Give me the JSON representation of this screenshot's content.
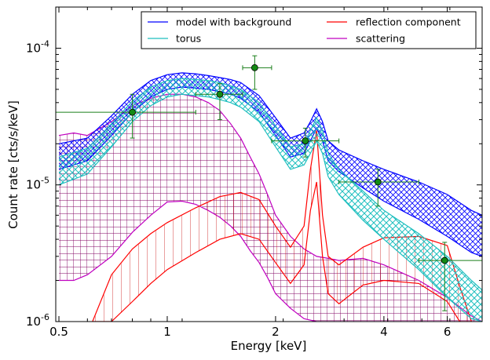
{
  "chart_data": {
    "type": "line",
    "title": "",
    "xlabel": "Energy [keV]",
    "ylabel": "Count rate [cts/s/keV]",
    "x_scale": "log",
    "y_scale": "log",
    "xlim": [
      0.49,
      7.5
    ],
    "ylim": [
      1e-06,
      0.0002
    ],
    "grid": false,
    "legend_placement": "top-right",
    "x_ticks": [
      {
        "value": 0.5,
        "label": "0.5"
      },
      {
        "value": 1,
        "label": "1"
      },
      {
        "value": 2,
        "label": "2"
      },
      {
        "value": 4,
        "label": "4"
      },
      {
        "value": 6,
        "label": "6"
      }
    ],
    "y_ticks": [
      {
        "value": 1e-06,
        "base": "10",
        "exp": "-6"
      },
      {
        "value": 1e-05,
        "base": "10",
        "exp": "-5"
      },
      {
        "value": 0.0001,
        "base": "10",
        "exp": "-4"
      }
    ],
    "legend": [
      {
        "label": "model with background",
        "color": "#0000ff"
      },
      {
        "label": "reflection component",
        "color": "#ff0000"
      },
      {
        "label": "torus",
        "color": "#1fbfbf"
      },
      {
        "label": "scattering",
        "color": "#c000c0"
      }
    ],
    "colors": {
      "model": "#0000ff",
      "torus": "#1fbfbf",
      "reflection": "#ff0000",
      "scattering": "#c000c0",
      "data": "#1a7f1a",
      "data_marker": "#138a13"
    },
    "series": [
      {
        "name": "model with background",
        "band": "crosshatch",
        "x": [
          0.5,
          0.6,
          0.7,
          0.8,
          0.9,
          1.0,
          1.1,
          1.2,
          1.3,
          1.4,
          1.5,
          1.6,
          1.8,
          2.0,
          2.2,
          2.4,
          2.5,
          2.6,
          2.7,
          2.8,
          3.0,
          3.5,
          4.0,
          5.0,
          6.0,
          7.0,
          7.5
        ],
        "upper": [
          2e-05,
          2.2e-05,
          3.2e-05,
          4.6e-05,
          5.8e-05,
          6.4e-05,
          6.6e-05,
          6.5e-05,
          6.3e-05,
          6.1e-05,
          5.9e-05,
          5.6e-05,
          4.5e-05,
          3.1e-05,
          2.2e-05,
          2.4e-05,
          2.9e-05,
          3.6e-05,
          2.9e-05,
          2.1e-05,
          1.8e-05,
          1.5e-05,
          1.3e-05,
          1.05e-05,
          8.5e-06,
          6.5e-06,
          6e-06
        ],
        "lower": [
          1.3e-05,
          1.5e-05,
          2.3e-05,
          3.4e-05,
          4.4e-05,
          5e-05,
          5.2e-05,
          5.1e-05,
          5e-05,
          4.8e-05,
          4.6e-05,
          4.3e-05,
          3.4e-05,
          2.3e-05,
          1.6e-05,
          1.7e-05,
          2.1e-05,
          2.6e-05,
          2.1e-05,
          1.5e-05,
          1.25e-05,
          9.5e-06,
          7.6e-06,
          5.6e-06,
          4.2e-06,
          3.2e-06,
          3e-06
        ]
      },
      {
        "name": "torus",
        "band": "crosshatch",
        "x": [
          0.5,
          0.6,
          0.7,
          0.8,
          0.9,
          1.0,
          1.1,
          1.2,
          1.3,
          1.4,
          1.5,
          1.6,
          1.8,
          2.0,
          2.2,
          2.4,
          2.5,
          2.6,
          2.7,
          2.8,
          3.0,
          3.5,
          4.0,
          5.0,
          6.0,
          7.0,
          7.5
        ],
        "upper": [
          1.6e-05,
          1.85e-05,
          2.8e-05,
          4.1e-05,
          5.2e-05,
          5.8e-05,
          6e-05,
          5.9e-05,
          5.8e-05,
          5.6e-05,
          5.3e-05,
          5e-05,
          4e-05,
          2.7e-05,
          1.9e-05,
          2e-05,
          2.5e-05,
          3.1e-05,
          2.5e-05,
          1.7e-05,
          1.3e-05,
          9e-06,
          6.5e-06,
          4.4e-06,
          3e-06,
          2e-06,
          1.7e-06
        ],
        "lower": [
          1e-05,
          1.2e-05,
          1.9e-05,
          2.9e-05,
          3.8e-05,
          4.4e-05,
          4.6e-05,
          4.5e-05,
          4.4e-05,
          4.2e-05,
          4e-05,
          3.7e-05,
          2.9e-05,
          1.9e-05,
          1.3e-05,
          1.4e-05,
          1.7e-05,
          2.1e-05,
          1.7e-05,
          1.15e-05,
          8.5e-06,
          5.5e-06,
          4e-06,
          2.4e-06,
          1.5e-06,
          1.05e-06,
          1e-06
        ]
      },
      {
        "name": "reflection component",
        "band": "grid",
        "x": [
          0.62,
          0.7,
          0.8,
          0.9,
          1.0,
          1.2,
          1.4,
          1.6,
          1.8,
          2.0,
          2.2,
          2.4,
          2.5,
          2.6,
          2.7,
          2.8,
          3.0,
          3.5,
          4.0,
          5.0,
          6.0,
          6.5,
          7.0
        ],
        "upper": [
          1e-06,
          2.2e-06,
          3.4e-06,
          4.4e-06,
          5.3e-06,
          6.8e-06,
          8.2e-06,
          8.8e-06,
          7.8e-06,
          5e-06,
          3.5e-06,
          5e-06,
          1.3e-05,
          2.5e-05,
          6e-06,
          3e-06,
          2.6e-06,
          3.5e-06,
          4.1e-06,
          4.2e-06,
          3.6e-06,
          1.8e-06,
          1e-06
        ],
        "lower": [
          1e-06,
          1e-06,
          1.4e-06,
          1.9e-06,
          2.4e-06,
          3.2e-06,
          4e-06,
          4.4e-06,
          4e-06,
          2.7e-06,
          1.9e-06,
          2.6e-06,
          6.5e-06,
          1.05e-05,
          3e-06,
          1.6e-06,
          1.35e-06,
          1.85e-06,
          2e-06,
          1.9e-06,
          1.4e-06,
          1e-06,
          1e-06
        ]
      },
      {
        "name": "scattering",
        "band": "grid",
        "x": [
          0.5,
          0.55,
          0.6,
          0.7,
          0.8,
          0.9,
          1.0,
          1.1,
          1.2,
          1.3,
          1.4,
          1.5,
          1.6,
          1.7,
          1.8,
          1.9,
          2.0,
          2.2,
          2.4,
          2.6,
          2.8,
          3.0,
          3.5,
          4.0,
          5.0,
          6.0,
          7.0,
          7.5
        ],
        "upper": [
          2.3e-05,
          2.4e-05,
          2.3e-05,
          2.9e-05,
          3.8e-05,
          4.3e-05,
          4.6e-05,
          4.6e-05,
          4.4e-05,
          4e-05,
          3.5e-05,
          2.8e-05,
          2.2e-05,
          1.6e-05,
          1.2e-05,
          8.5e-06,
          6e-06,
          4.2e-06,
          3.4e-06,
          3e-06,
          2.9e-06,
          2.8e-06,
          2.9e-06,
          2.6e-06,
          2e-06,
          1.5e-06,
          1.1e-06,
          1e-06
        ],
        "lower": [
          2e-06,
          2e-06,
          2.2e-06,
          3e-06,
          4.5e-06,
          6e-06,
          7.5e-06,
          7.6e-06,
          7.2e-06,
          6.5e-06,
          5.8e-06,
          5e-06,
          4.2e-06,
          3.3e-06,
          2.7e-06,
          2.1e-06,
          1.6e-06,
          1.25e-06,
          1.05e-06,
          1e-06,
          1e-06,
          1e-06,
          1e-06,
          1e-06,
          1e-06,
          1e-06,
          1e-06,
          1e-06
        ]
      }
    ],
    "data_points": [
      {
        "x": 0.8,
        "xlo": 0.49,
        "xhi": 1.2,
        "y": 3.4e-05,
        "ylo": 2.2e-05,
        "yhi": 4.6e-05
      },
      {
        "x": 1.4,
        "xlo": 1.2,
        "xhi": 1.62,
        "y": 4.6e-05,
        "ylo": 3e-05,
        "yhi": 5.5e-05
      },
      {
        "x": 1.75,
        "xlo": 1.62,
        "xhi": 1.95,
        "y": 7.2e-05,
        "ylo": 5e-05,
        "yhi": 8.8e-05
      },
      {
        "x": 2.42,
        "xlo": 1.95,
        "xhi": 3.0,
        "y": 2.1e-05,
        "ylo": 1.6e-05,
        "yhi": 2.6e-05
      },
      {
        "x": 3.85,
        "xlo": 3.0,
        "xhi": 5.0,
        "y": 1.05e-05,
        "ylo": 7e-06,
        "yhi": 1.3e-05
      },
      {
        "x": 5.9,
        "xlo": 5.0,
        "xhi": 7.5,
        "y": 2.8e-06,
        "ylo": 1.2e-06,
        "yhi": 3.8e-06
      }
    ]
  }
}
